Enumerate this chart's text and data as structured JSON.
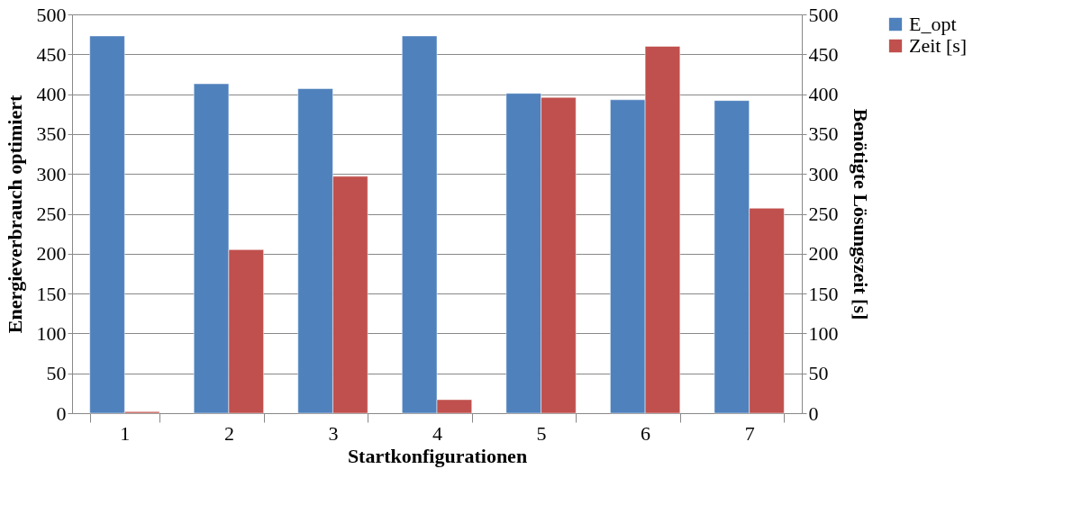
{
  "chart_data": {
    "type": "bar",
    "xlabel": "Startkonfigurationen",
    "ylabel": "Energieverbrauch optimiert",
    "y2label": "Benötigte Lösungszeit [s]",
    "categories": [
      "1",
      "2",
      "3",
      "4",
      "5",
      "6",
      "7"
    ],
    "series": [
      {
        "name": "E_opt",
        "color": "#4f81bd",
        "values": [
          473,
          413,
          407,
          473,
          401,
          393,
          392
        ]
      },
      {
        "name": "Zeit [s]",
        "color": "#c0504d",
        "axis": "y2",
        "values": [
          2,
          205,
          297,
          17,
          396,
          460,
          257
        ]
      }
    ],
    "ylim": [
      0,
      500
    ],
    "yticks": [
      0,
      50,
      100,
      150,
      200,
      250,
      300,
      350,
      400,
      450,
      500
    ],
    "y2lim": [
      0,
      500
    ],
    "y2ticks": [
      0,
      50,
      100,
      150,
      200,
      250,
      300,
      350,
      400,
      450,
      500
    ],
    "grid": "y",
    "legend": "right"
  }
}
